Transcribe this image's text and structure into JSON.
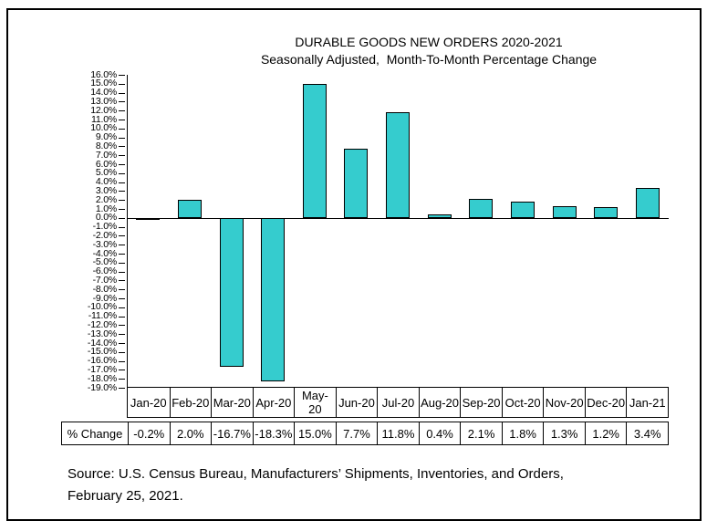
{
  "chart_data": {
    "type": "bar",
    "title": "DURABLE GOODS NEW ORDERS 2020-2021",
    "subtitle": "Seasonally Adjusted,  Month-To-Month Percentage Change",
    "categories": [
      "Jan-20",
      "Feb-20",
      "Mar-20",
      "Apr-20",
      "May-20",
      "Jun-20",
      "Jul-20",
      "Aug-20",
      "Sep-20",
      "Oct-20",
      "Nov-20",
      "Dec-20",
      "Jan-21"
    ],
    "values": [
      -0.2,
      2.0,
      -16.7,
      -18.3,
      15.0,
      7.7,
      11.8,
      0.4,
      2.1,
      1.8,
      1.3,
      1.2,
      3.4
    ],
    "xlabel": "",
    "ylabel": "",
    "ylim": [
      -19.0,
      16.0
    ],
    "ytick_step": 1.0,
    "ytick_suffix": "%",
    "grid": false,
    "legend": false,
    "bar_color": "#35CCCE",
    "bar_border_color": "#000000",
    "axis_color": "#000000",
    "text_color": "#000000"
  },
  "table": {
    "row_header": "% Change",
    "columns": [
      "Jan-20",
      "Feb-20",
      "Mar-20",
      "Apr-20",
      "May-\n20",
      "Jun-20",
      "Jul-20",
      "Aug-20",
      "Sep-20",
      "Oct-20",
      "Nov-20",
      "Dec-20",
      "Jan-21"
    ],
    "values": [
      "-0.2%",
      "2.0%",
      "-16.7%",
      "-18.3%",
      "15.0%",
      "7.7%",
      "11.8%",
      "0.4%",
      "2.1%",
      "1.8%",
      "1.3%",
      "1.2%",
      "3.4%"
    ]
  },
  "source": {
    "line1": "Source: U.S. Census Bureau, Manufacturers’ Shipments, Inventories, and Orders,",
    "line2": "February 25, 2021."
  }
}
